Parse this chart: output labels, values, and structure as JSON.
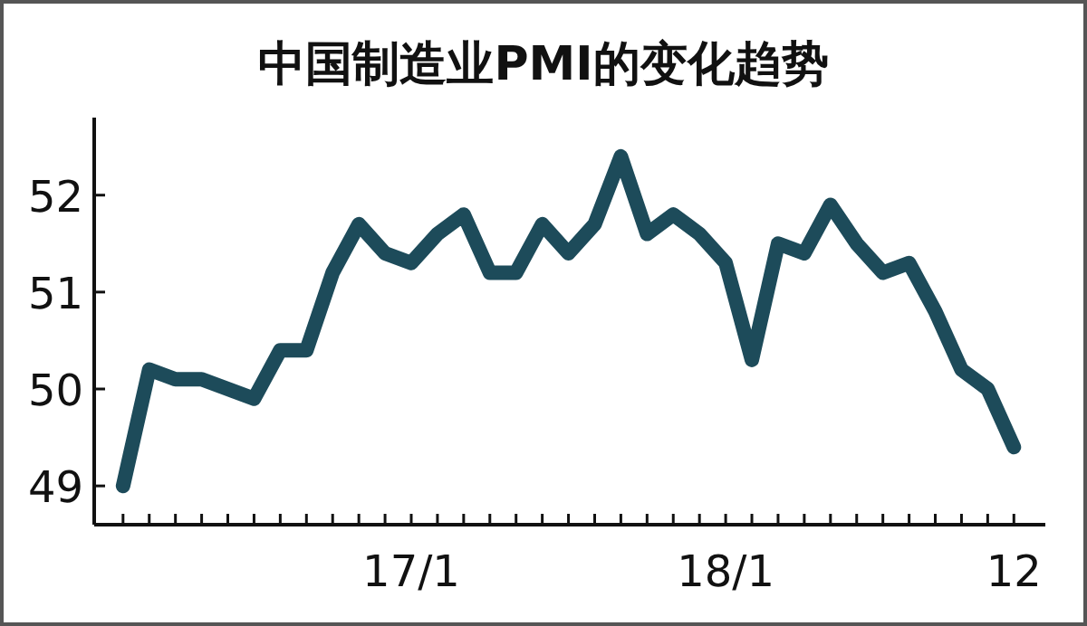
{
  "chart_data": {
    "type": "line",
    "title": "中国制造业PMI的变化趋势",
    "categories": [
      null,
      null,
      null,
      null,
      null,
      null,
      null,
      null,
      null,
      null,
      null,
      "17/1",
      null,
      null,
      null,
      null,
      null,
      null,
      null,
      null,
      null,
      null,
      null,
      "18/1",
      null,
      null,
      null,
      null,
      null,
      null,
      null,
      null,
      null,
      null,
      "12"
    ],
    "series": [
      {
        "color": "#1d4b5a",
        "values": [
          49.0,
          50.2,
          50.1,
          50.1,
          50.0,
          49.9,
          50.4,
          50.4,
          51.2,
          51.7,
          51.4,
          51.3,
          51.6,
          51.8,
          51.2,
          51.2,
          51.7,
          51.4,
          51.7,
          52.4,
          51.6,
          51.8,
          51.6,
          51.3,
          50.3,
          51.5,
          51.4,
          51.9,
          51.5,
          51.2,
          51.3,
          50.8,
          50.2,
          50.0,
          49.4
        ]
      }
    ],
    "ylim": [
      48.6,
      52.8
    ],
    "yticks": [
      49,
      50,
      51,
      52
    ],
    "grid": false,
    "marker": "none",
    "line_style": "solid"
  }
}
